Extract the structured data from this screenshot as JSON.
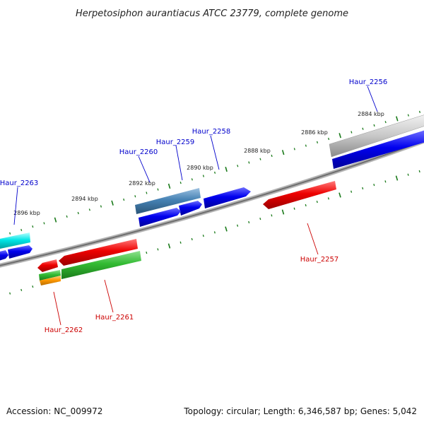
{
  "title": "Herpetosiphon aurantiacus ATCC 23779, complete genome",
  "footer": {
    "accession": "Accession: NC_009972",
    "summary": "Topology: circular; Length: 6,346,587 bp; Genes: 5,042"
  },
  "tick_labels": [
    "2884 kbp",
    "2886 kbp",
    "2888 kbp",
    "2890 kbp",
    "2892 kbp",
    "2894 kbp",
    "2896 kbp"
  ],
  "genes": [
    {
      "id": "Haur_2256",
      "strand": "forward"
    },
    {
      "id": "Haur_2257",
      "strand": "reverse"
    },
    {
      "id": "Haur_2258",
      "strand": "forward"
    },
    {
      "id": "Haur_2259",
      "strand": "forward"
    },
    {
      "id": "Haur_2260",
      "strand": "forward"
    },
    {
      "id": "Haur_2261",
      "strand": "reverse"
    },
    {
      "id": "Haur_2262",
      "strand": "reverse"
    },
    {
      "id": "Haur_2263",
      "strand": "forward"
    }
  ],
  "colors": {
    "forward_label": "#0000cc",
    "reverse_label": "#cc0000",
    "forward_gene": "#0000ee",
    "reverse_gene": "#ee0000",
    "ticks": "#1a7a1a",
    "backbone": "#808080"
  }
}
